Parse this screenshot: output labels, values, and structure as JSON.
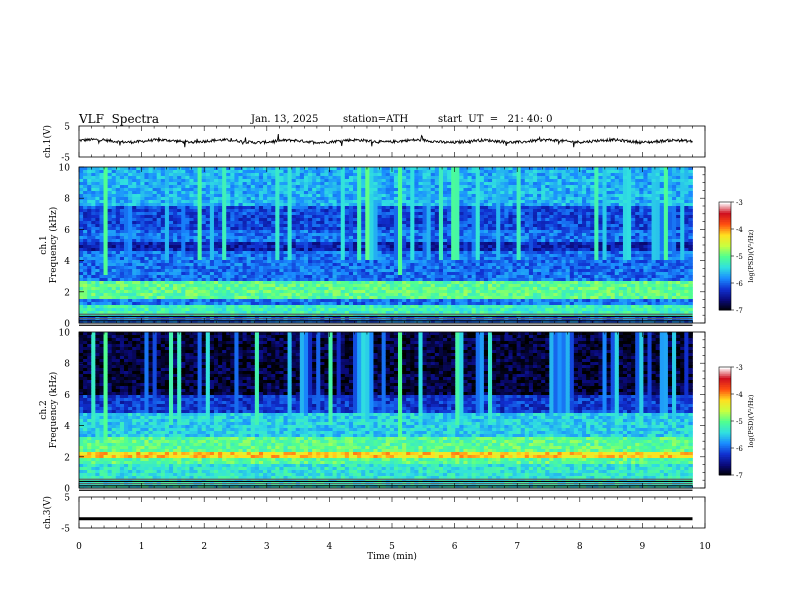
{
  "header": {
    "title": "VLF  Spectra",
    "date": "Jan. 13, 2025",
    "station": "station=ATH",
    "start_ut": "start  UT  =   21: 40: 0"
  },
  "colors": {
    "colormap": [
      "#000000",
      "#0a0a7a",
      "#1030d0",
      "#1a8cff",
      "#30e0e0",
      "#50ff90",
      "#c8ff40",
      "#ffe020",
      "#ff5010",
      "#d01020",
      "#ffffff"
    ],
    "trace": "#000000"
  },
  "chart_data": [
    {
      "type": "line",
      "ylabel": "ch.1(V)",
      "yticks": [
        "5",
        "-5"
      ],
      "ylim": [
        -5,
        5
      ],
      "note_series": "waveform centered near 0 V with small fluctuations",
      "x": [
        0,
        1,
        2,
        3,
        4,
        5,
        6,
        7,
        8,
        9,
        9.8
      ],
      "values": [
        0.3,
        0.1,
        0.2,
        0.0,
        0.1,
        0.2,
        0.0,
        0.1,
        0.2,
        0.1,
        0.0
      ]
    },
    {
      "type": "heatmap",
      "ylabel": "ch.1\nFrequency  (kHz)",
      "yticks": [
        "0",
        "2",
        "4",
        "6",
        "8",
        "10"
      ],
      "ylim": [
        0,
        10
      ],
      "xlim": [
        0,
        10
      ],
      "x_data_end": 9.8,
      "colorbar": {
        "label": "log(PSD)(V²/Hz)",
        "ticks": [
          "-3",
          "-4",
          "-5",
          "-6",
          "-7"
        ],
        "range": [
          -7,
          -3
        ]
      }
    },
    {
      "type": "heatmap",
      "ylabel": "ch.2\nFrequency  (kHz)",
      "yticks": [
        "0",
        "2",
        "4",
        "6",
        "8",
        "10"
      ],
      "ylim": [
        0,
        10
      ],
      "xlim": [
        0,
        10
      ],
      "x_data_end": 9.8,
      "colorbar": {
        "label": "log(PSD)(V²/Hz)",
        "ticks": [
          "-3",
          "-4",
          "-5",
          "-6",
          "-7"
        ],
        "range": [
          -7,
          -3
        ]
      }
    },
    {
      "type": "line",
      "ylabel": "ch.3(V)",
      "yticks": [
        "5",
        "-5"
      ],
      "ylim": [
        -5,
        5
      ],
      "x": [
        0,
        9.8
      ],
      "values": [
        -2,
        -2
      ],
      "xlabel": "Time  (min)",
      "xticks": [
        "0",
        "1",
        "2",
        "3",
        "4",
        "5",
        "6",
        "7",
        "8",
        "9",
        "10"
      ],
      "xlim": [
        0,
        10
      ]
    }
  ]
}
